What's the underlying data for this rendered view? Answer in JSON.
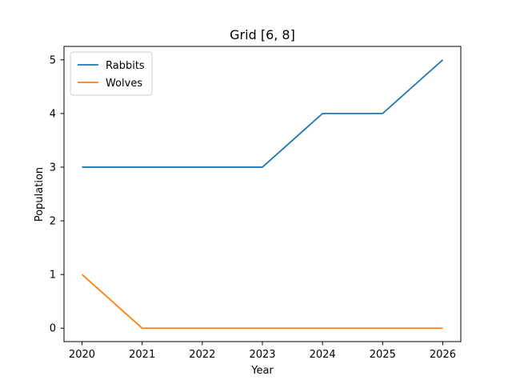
{
  "chart_data": {
    "type": "line",
    "title": "Grid [6, 8]",
    "xlabel": "Year",
    "ylabel": "Population",
    "x": [
      2020,
      2021,
      2022,
      2023,
      2024,
      2025,
      2026
    ],
    "series": [
      {
        "name": "Rabbits",
        "values": [
          3,
          3,
          3,
          3,
          4,
          4,
          5
        ],
        "color": "#1f77b4"
      },
      {
        "name": "Wolves",
        "values": [
          1,
          0,
          0,
          0,
          0,
          0,
          0
        ],
        "color": "#ff7f0e"
      }
    ],
    "xlim": [
      2019.7,
      2026.3
    ],
    "ylim": [
      -0.25,
      5.25
    ],
    "xticks": [
      2020,
      2021,
      2022,
      2023,
      2024,
      2025,
      2026
    ],
    "yticks": [
      0,
      1,
      2,
      3,
      4,
      5
    ],
    "grid": false,
    "legend_position": "top-left"
  }
}
